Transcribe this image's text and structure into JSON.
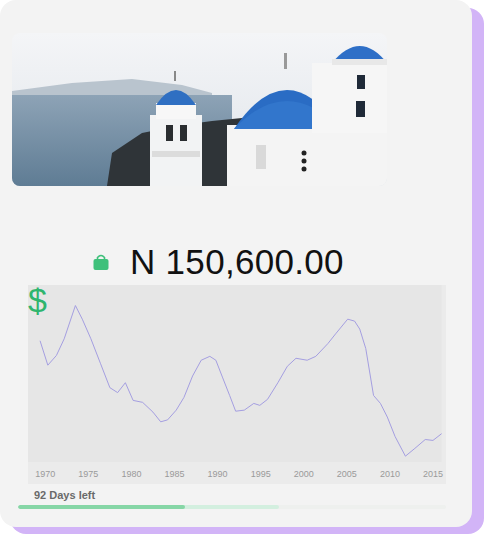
{
  "card": {
    "price": "N 150,600.00",
    "days_left": "92 Days left",
    "progress": {
      "filled": 39,
      "buffered": 61
    }
  },
  "chart_data": {
    "type": "line",
    "ylabel": "$",
    "color": "#a49ee0",
    "grid": false,
    "tick_labels": "x",
    "xlim": [
      1968,
      2016
    ],
    "xticks": [
      1970,
      1975,
      1980,
      1985,
      1990,
      1995,
      2000,
      2005,
      2010,
      2015
    ],
    "ylim": [
      0,
      100
    ],
    "x": [
      1969.4,
      1970.3,
      1971.3,
      1972.2,
      1973.5,
      1974.3,
      1975.3,
      1976.4,
      1977.5,
      1978.4,
      1979.3,
      1980.2,
      1981.3,
      1982.5,
      1983.4,
      1984.2,
      1985.2,
      1986.1,
      1987.1,
      1988.1,
      1989.1,
      1989.8,
      1990.6,
      1991.4,
      1992.1,
      1993.1,
      1994.2,
      1994.9,
      1995.8,
      1997.0,
      1998.1,
      1999.1,
      2000.4,
      2001.4,
      2002.8,
      2003.7,
      2005.1,
      2005.9,
      2006.5,
      2007.2,
      2008.1,
      2008.9,
      2009.7,
      2010.6,
      2011.8,
      2012.9,
      2014.1,
      2015.0,
      2016.0
    ],
    "values": [
      68.5,
      54.7,
      60.2,
      69.6,
      88.4,
      80.7,
      69.6,
      55.8,
      42.0,
      39.2,
      44.8,
      34.8,
      33.7,
      28.2,
      22.7,
      23.8,
      29.3,
      36.5,
      48.6,
      57.5,
      59.7,
      57.5,
      47.5,
      37.6,
      28.7,
      29.3,
      33.1,
      32.0,
      35.4,
      44.8,
      54.1,
      58.6,
      57.5,
      59.7,
      66.9,
      72.4,
      80.7,
      79.6,
      75.1,
      64.1,
      37.6,
      33.1,
      25.4,
      14.4,
      3.3,
      7.7,
      12.7,
      12.2,
      16.0
    ]
  }
}
